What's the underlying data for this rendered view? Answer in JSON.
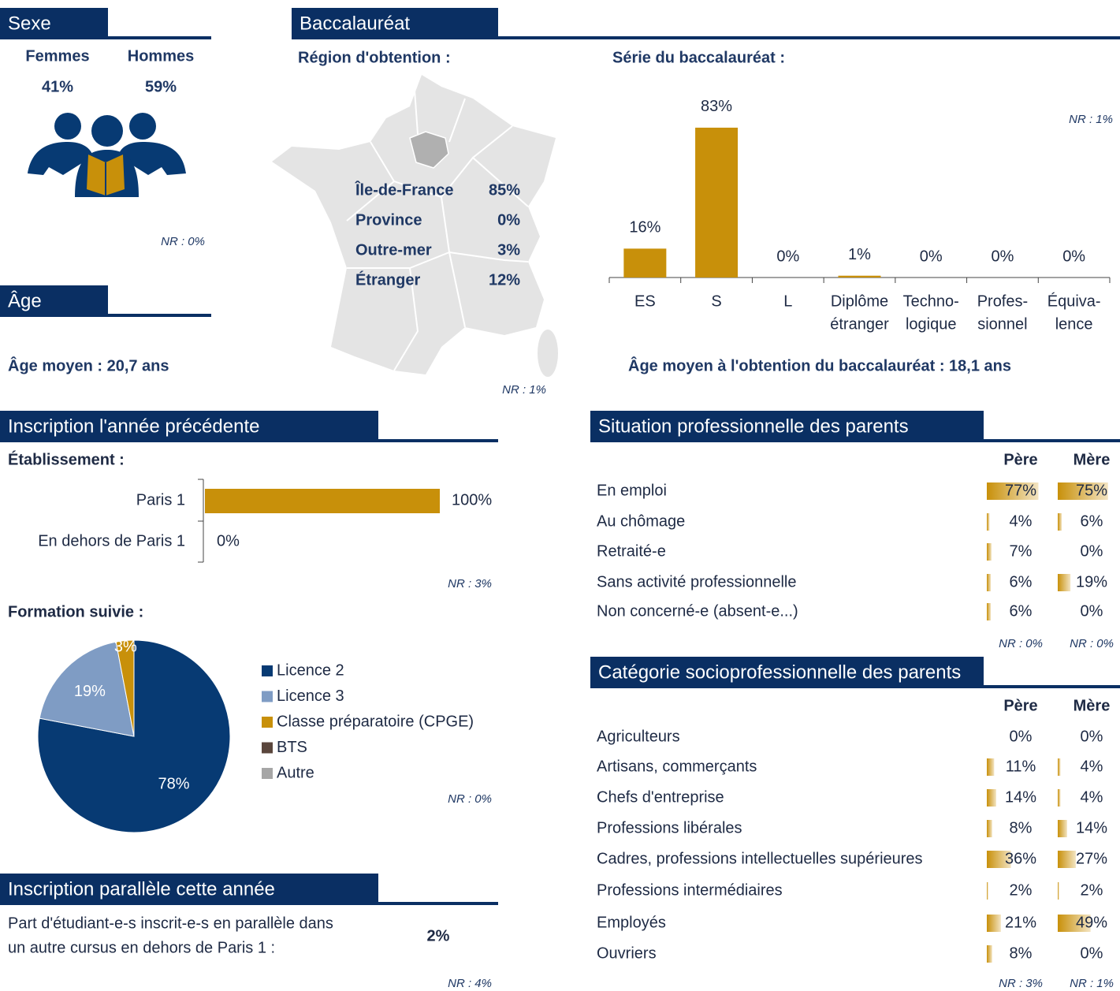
{
  "sexe": {
    "title": "Sexe",
    "labels": [
      "Femmes",
      "Hommes"
    ],
    "values": [
      "41%",
      "59%"
    ],
    "nr": "NR : 0%"
  },
  "age": {
    "title": "Âge",
    "text": "Âge moyen : 20,7 ans"
  },
  "bac": {
    "title": "Baccalauréat",
    "region_label": "Région d'obtention :",
    "regions": [
      [
        "Île-de-France",
        "85%"
      ],
      [
        "Province",
        "0%"
      ],
      [
        "Outre-mer",
        "3%"
      ],
      [
        "Étranger",
        "12%"
      ]
    ],
    "region_nr": "NR : 1%",
    "serie_label": "Série du baccalauréat :",
    "serie_nr": "NR : 1%",
    "age_text": "Âge moyen à l'obtention du baccalauréat : 18,1 ans"
  },
  "inscription": {
    "title": "Inscription l'année précédente",
    "etab_label": "Établissement :",
    "etab_nr": "NR : 3%",
    "formation_label": "Formation suivie :",
    "formation_nr": "NR : 0%"
  },
  "parallele": {
    "title": "Inscription parallèle cette année",
    "text": [
      "Part d'étudiant-e-s inscrit-e-s en parallèle dans",
      "un autre cursus en dehors de Paris 1 :"
    ],
    "value": "2%",
    "nr": "NR : 4%"
  },
  "situation": {
    "title": "Situation professionnelle des parents",
    "columns": [
      "Père",
      "Mère"
    ],
    "rows": [
      "En emploi",
      "Au chômage",
      "Retraité-e",
      "Sans activité professionnelle",
      "Non concerné-e (absent-e...)"
    ],
    "values": [
      [
        77,
        75
      ],
      [
        4,
        6
      ],
      [
        7,
        0
      ],
      [
        6,
        19
      ],
      [
        6,
        0
      ]
    ],
    "value_labels": [
      [
        "77%",
        "75%"
      ],
      [
        "4%",
        "6%"
      ],
      [
        "7%",
        "0%"
      ],
      [
        "6%",
        "19%"
      ],
      [
        "6%",
        "0%"
      ]
    ],
    "nr": [
      "NR : 0%",
      "NR : 0%"
    ]
  },
  "csp": {
    "title": "Catégorie socioprofessionnelle des parents",
    "columns": [
      "Père",
      "Mère"
    ],
    "rows": [
      "Agriculteurs",
      "Artisans, commerçants",
      "Chefs d'entreprise",
      "Professions libérales",
      "Cadres, professions intellectuelles supérieures",
      "Professions intermédiaires",
      "Employés",
      "Ouvriers"
    ],
    "values": [
      [
        0,
        0
      ],
      [
        11,
        4
      ],
      [
        14,
        4
      ],
      [
        8,
        14
      ],
      [
        36,
        27
      ],
      [
        2,
        2
      ],
      [
        21,
        49
      ],
      [
        8,
        0
      ]
    ],
    "value_labels": [
      [
        "0%",
        "0%"
      ],
      [
        "11%",
        "4%"
      ],
      [
        "14%",
        "4%"
      ],
      [
        "8%",
        "14%"
      ],
      [
        "36%",
        "27%"
      ],
      [
        "2%",
        "2%"
      ],
      [
        "21%",
        "49%"
      ],
      [
        "8%",
        "0%"
      ]
    ],
    "nr": [
      "NR : 3%",
      "NR : 1%"
    ]
  },
  "chart_data": [
    {
      "type": "bar",
      "color": "#c8900a",
      "categories": [
        [
          "ES"
        ],
        [
          "S"
        ],
        [
          "L"
        ],
        [
          "Diplôme",
          "étranger"
        ],
        [
          "Techno-",
          "logique"
        ],
        [
          "Profes-",
          "sionnel"
        ],
        [
          "Équiva-",
          "lence"
        ]
      ],
      "values": [
        16,
        83,
        0,
        1,
        0,
        0,
        0
      ],
      "value_labels": [
        "16%",
        "83%",
        "0%",
        "1%",
        "0%",
        "0%",
        "0%"
      ]
    },
    {
      "type": "hbar",
      "color": "#c8900a",
      "categories": [
        "Paris 1",
        "En dehors de Paris 1"
      ],
      "values": [
        100,
        0
      ],
      "value_labels": [
        "100%",
        "0%"
      ]
    },
    {
      "type": "pie",
      "categories": [
        "Licence 2",
        "Licence 3",
        "Classe préparatoire (CPGE)",
        "BTS",
        "Autre"
      ],
      "values": [
        78,
        19,
        3,
        0,
        0
      ],
      "value_labels": [
        "78%",
        "19%",
        "3%",
        null,
        null
      ],
      "colors": [
        "#073a73",
        "#7f9cc4",
        "#c8900a",
        "#5a463c",
        "#a6a6a6"
      ]
    }
  ]
}
